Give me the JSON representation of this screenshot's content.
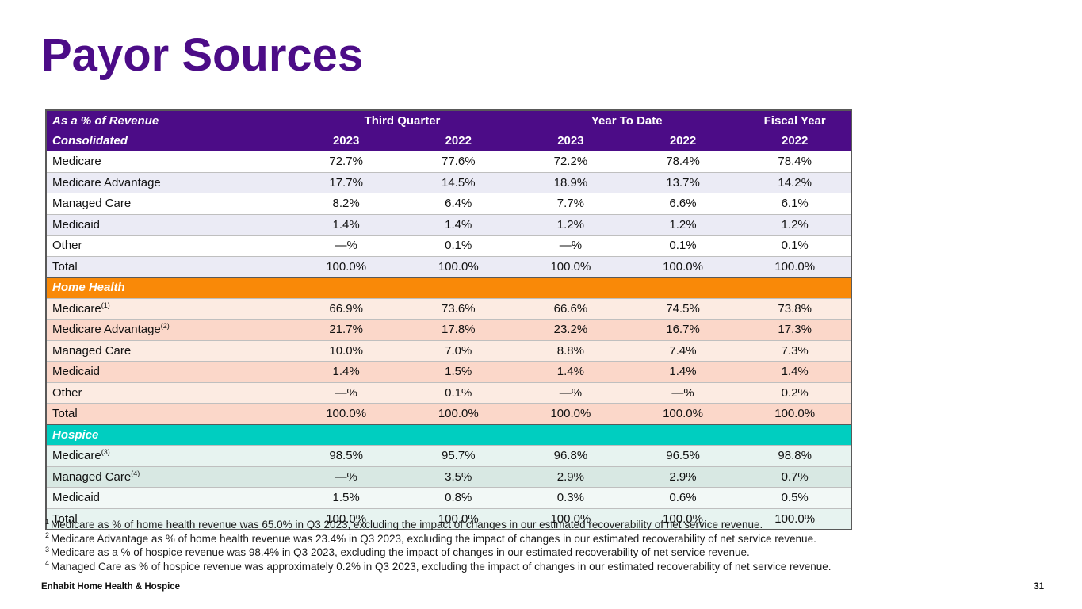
{
  "slide": {
    "title": "Payor Sources",
    "footer_left": "Enhabit Home Health & Hospice",
    "page_number": "31"
  },
  "colors": {
    "title_purple": "#4C0C87",
    "header_purple": "#4C0C87",
    "home_health_orange": "#F98908",
    "hospice_teal": "#00CEC0",
    "consolidated_zebra": "#EBEBF5",
    "home_health_zebra_light": "#FCEBE2",
    "home_health_zebra_dark": "#FBD7C9",
    "hospice_zebra_light": "#E7F3F0",
    "hospice_zebra_dark": "#D8E8E3"
  },
  "table": {
    "header": {
      "col1_line1": "As a % of Revenue",
      "col1_line2": "Consolidated",
      "group1": "Third Quarter",
      "group2": "Year To Date",
      "group3": "Fiscal Year",
      "years": [
        "2023",
        "2022",
        "2023",
        "2022",
        "2022"
      ]
    },
    "sections": [
      {
        "label": null,
        "header_bg": null,
        "rows": [
          {
            "label": "Medicare",
            "sup": "",
            "bg": "#FFFFFF",
            "values": [
              "72.7%",
              "77.6%",
              "72.2%",
              "78.4%",
              "78.4%"
            ]
          },
          {
            "label": "Medicare Advantage",
            "sup": "",
            "bg": "#EBEBF5",
            "values": [
              "17.7%",
              "14.5%",
              "18.9%",
              "13.7%",
              "14.2%"
            ]
          },
          {
            "label": "Managed Care",
            "sup": "",
            "bg": "#FFFFFF",
            "values": [
              "8.2%",
              "6.4%",
              "7.7%",
              "6.6%",
              "6.1%"
            ]
          },
          {
            "label": "Medicaid",
            "sup": "",
            "bg": "#EBEBF5",
            "values": [
              "1.4%",
              "1.4%",
              "1.2%",
              "1.2%",
              "1.2%"
            ]
          },
          {
            "label": "Other",
            "sup": "",
            "bg": "#FFFFFF",
            "values": [
              "—%",
              "0.1%",
              "—%",
              "0.1%",
              "0.1%"
            ]
          },
          {
            "label": "Total",
            "sup": "",
            "bg": "#EBEBF5",
            "values": [
              "100.0%",
              "100.0%",
              "100.0%",
              "100.0%",
              "100.0%"
            ]
          }
        ]
      },
      {
        "label": "Home Health",
        "header_bg": "#F98908",
        "rows": [
          {
            "label": "Medicare",
            "sup": "(1)",
            "bg": "#FCEBE2",
            "values": [
              "66.9%",
              "73.6%",
              "66.6%",
              "74.5%",
              "73.8%"
            ]
          },
          {
            "label": "Medicare Advantage",
            "sup": "(2)",
            "bg": "#FBD7C9",
            "values": [
              "21.7%",
              "17.8%",
              "23.2%",
              "16.7%",
              "17.3%"
            ]
          },
          {
            "label": "Managed Care",
            "sup": "",
            "bg": "#FCEBE2",
            "values": [
              "10.0%",
              "7.0%",
              "8.8%",
              "7.4%",
              "7.3%"
            ]
          },
          {
            "label": "Medicaid",
            "sup": "",
            "bg": "#FBD7C9",
            "values": [
              "1.4%",
              "1.5%",
              "1.4%",
              "1.4%",
              "1.4%"
            ]
          },
          {
            "label": "Other",
            "sup": "",
            "bg": "#FCEBE2",
            "values": [
              "—%",
              "0.1%",
              "—%",
              "—%",
              "0.2%"
            ]
          },
          {
            "label": "Total",
            "sup": "",
            "bg": "#FBD7C9",
            "values": [
              "100.0%",
              "100.0%",
              "100.0%",
              "100.0%",
              "100.0%"
            ]
          }
        ]
      },
      {
        "label": "Hospice",
        "header_bg": "#00CEC0",
        "rows": [
          {
            "label": "Medicare",
            "sup": "(3)",
            "bg": "#E7F3F0",
            "values": [
              "98.5%",
              "95.7%",
              "96.8%",
              "96.5%",
              "98.8%"
            ]
          },
          {
            "label": "Managed Care",
            "sup": "(4)",
            "bg": "#D8E8E3",
            "values": [
              "—%",
              "3.5%",
              "2.9%",
              "2.9%",
              "0.7%"
            ]
          },
          {
            "label": "Medicaid",
            "sup": "",
            "bg": "#F2F8F6",
            "values": [
              "1.5%",
              "0.8%",
              "0.3%",
              "0.6%",
              "0.5%"
            ]
          },
          {
            "label": "Total",
            "sup": "",
            "bg": "#E7F3F0",
            "values": [
              "100.0%",
              "100.0%",
              "100.0%",
              "100.0%",
              "100.0%"
            ]
          }
        ]
      }
    ]
  },
  "footnotes": [
    {
      "sup": "1",
      "text": "Medicare as % of home health revenue was 65.0% in Q3 2023, excluding the impact of changes in our estimated recoverability of net service revenue."
    },
    {
      "sup": "2",
      "text": "Medicare Advantage as % of home health revenue was 23.4% in Q3 2023, excluding the impact of changes in our estimated recoverability of net service revenue."
    },
    {
      "sup": "3",
      "text": "Medicare as a % of hospice revenue was 98.4% in Q3 2023, excluding the impact of changes in our estimated recoverability of net service revenue."
    },
    {
      "sup": "4",
      "text": "Managed Care as % of hospice revenue was approximately 0.2% in Q3 2023, excluding the impact of changes in our estimated recoverability of net service revenue."
    }
  ]
}
